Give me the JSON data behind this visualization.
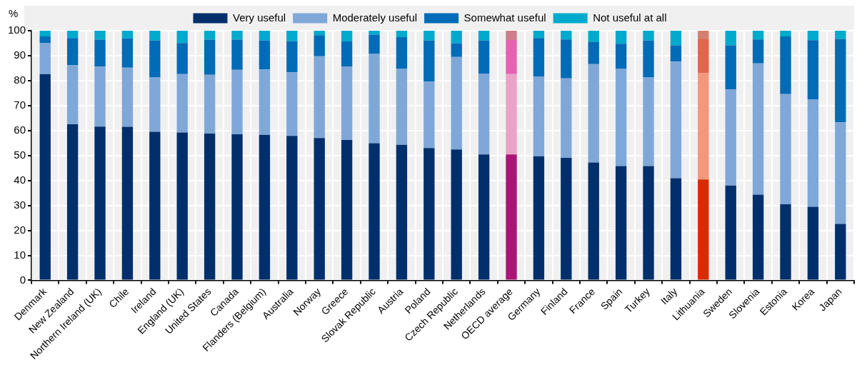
{
  "chart_data": {
    "type": "bar",
    "stacked": true,
    "ylabel": "%",
    "categories": [
      "Denmark",
      "New Zealand",
      "Northern Ireland (UK)",
      "Chile",
      "Ireland",
      "England (UK)",
      "United States",
      "Canada",
      "Flanders (Belgium)",
      "Australia",
      "Norway",
      "Greece",
      "Slovak Republic",
      "Austria",
      "Poland",
      "Czech Republic",
      "Netherlands",
      "OECD average",
      "Germany",
      "Finland",
      "France",
      "Spain",
      "Turkey",
      "Italy",
      "Lithuania",
      "Sweden",
      "Slovenia",
      "Estonia",
      "Korea",
      "Japan"
    ],
    "series": [
      {
        "name": "Very useful",
        "color": "#002f6c",
        "colors": [
          "#002f6c",
          "#002f6c",
          "#002f6c",
          "#002f6c",
          "#002f6c",
          "#002f6c",
          "#002f6c",
          "#002f6c",
          "#002f6c",
          "#002f6c",
          "#002f6c",
          "#002f6c",
          "#002f6c",
          "#002f6c",
          "#002f6c",
          "#002f6c",
          "#002f6c",
          "#ac1478",
          "#002f6c",
          "#002f6c",
          "#002f6c",
          "#002f6c",
          "#002f6c",
          "#002f6c",
          "#dc2a00",
          "#002f6c",
          "#002f6c",
          "#002f6c",
          "#002f6c",
          "#002f6c"
        ],
        "values": [
          82.6,
          62.5,
          61.6,
          61.5,
          59.5,
          59.2,
          58.8,
          58.5,
          58.3,
          57.9,
          57.0,
          56.2,
          54.9,
          54.3,
          53.0,
          52.4,
          50.4,
          50.4,
          49.7,
          49.1,
          47.2,
          45.8,
          45.8,
          40.9,
          40.4,
          38.0,
          34.3,
          30.5,
          29.5,
          22.6
        ]
      },
      {
        "name": "Moderately useful",
        "color": "#7fa8d9",
        "colors": [
          "#7fa8d9",
          "#7fa8d9",
          "#7fa8d9",
          "#7fa8d9",
          "#7fa8d9",
          "#7fa8d9",
          "#7fa8d9",
          "#7fa8d9",
          "#7fa8d9",
          "#7fa8d9",
          "#7fa8d9",
          "#7fa8d9",
          "#7fa8d9",
          "#7fa8d9",
          "#7fa8d9",
          "#7fa8d9",
          "#7fa8d9",
          "#eaa3c7",
          "#7fa8d9",
          "#7fa8d9",
          "#7fa8d9",
          "#7fa8d9",
          "#7fa8d9",
          "#7fa8d9",
          "#f4977a",
          "#7fa8d9",
          "#7fa8d9",
          "#7fa8d9",
          "#7fa8d9",
          "#7fa8d9"
        ],
        "values": [
          12.4,
          23.7,
          24.0,
          23.7,
          21.9,
          23.4,
          23.5,
          25.8,
          26.2,
          25.4,
          32.8,
          29.5,
          35.8,
          30.5,
          26.6,
          37.1,
          32.4,
          32.2,
          32.0,
          31.8,
          39.4,
          38.9,
          35.6,
          46.7,
          42.6,
          38.5,
          52.6,
          44.1,
          43.0,
          40.7
        ]
      },
      {
        "name": "Somewhat useful",
        "color": "#006bb6",
        "colors": [
          "#006bb6",
          "#006bb6",
          "#006bb6",
          "#006bb6",
          "#006bb6",
          "#006bb6",
          "#006bb6",
          "#006bb6",
          "#006bb6",
          "#006bb6",
          "#006bb6",
          "#006bb6",
          "#006bb6",
          "#006bb6",
          "#006bb6",
          "#006bb6",
          "#006bb6",
          "#e662b0",
          "#006bb6",
          "#006bb6",
          "#006bb6",
          "#006bb6",
          "#006bb6",
          "#006bb6",
          "#e3654c",
          "#006bb6",
          "#006bb6",
          "#006bb6",
          "#006bb6",
          "#006bb6"
        ],
        "values": [
          2.7,
          10.9,
          10.8,
          11.7,
          14.7,
          12.5,
          14.1,
          12.1,
          11.6,
          12.5,
          8.4,
          10.0,
          7.7,
          12.6,
          16.5,
          5.4,
          13.3,
          13.7,
          15.4,
          15.6,
          8.8,
          10.1,
          14.7,
          6.5,
          13.6,
          17.6,
          9.6,
          23.1,
          23.7,
          33.4
        ]
      },
      {
        "name": "Not useful at all",
        "color": "#00aacc",
        "colors": [
          "#00aacc",
          "#00aacc",
          "#00aacc",
          "#00aacc",
          "#00aacc",
          "#00aacc",
          "#00aacc",
          "#00aacc",
          "#00aacc",
          "#00aacc",
          "#00aacc",
          "#00aacc",
          "#00aacc",
          "#00aacc",
          "#00aacc",
          "#00aacc",
          "#00aacc",
          "#cd7f8a",
          "#00aacc",
          "#00aacc",
          "#00aacc",
          "#00aacc",
          "#00aacc",
          "#00aacc",
          "#d5806f",
          "#00aacc",
          "#00aacc",
          "#00aacc",
          "#00aacc",
          "#00aacc"
        ],
        "values": [
          2.3,
          2.9,
          3.6,
          3.1,
          3.9,
          4.9,
          3.6,
          3.6,
          3.9,
          4.2,
          1.8,
          4.3,
          1.6,
          2.6,
          3.9,
          5.1,
          3.9,
          3.7,
          2.9,
          3.5,
          4.6,
          5.2,
          3.9,
          5.9,
          3.4,
          5.9,
          3.5,
          2.3,
          3.8,
          3.3
        ]
      }
    ],
    "ylim": [
      0,
      100
    ],
    "yticks": [
      0,
      10,
      20,
      30,
      40,
      50,
      60,
      70,
      80,
      90,
      100
    ],
    "grid": true,
    "legend": "top"
  }
}
